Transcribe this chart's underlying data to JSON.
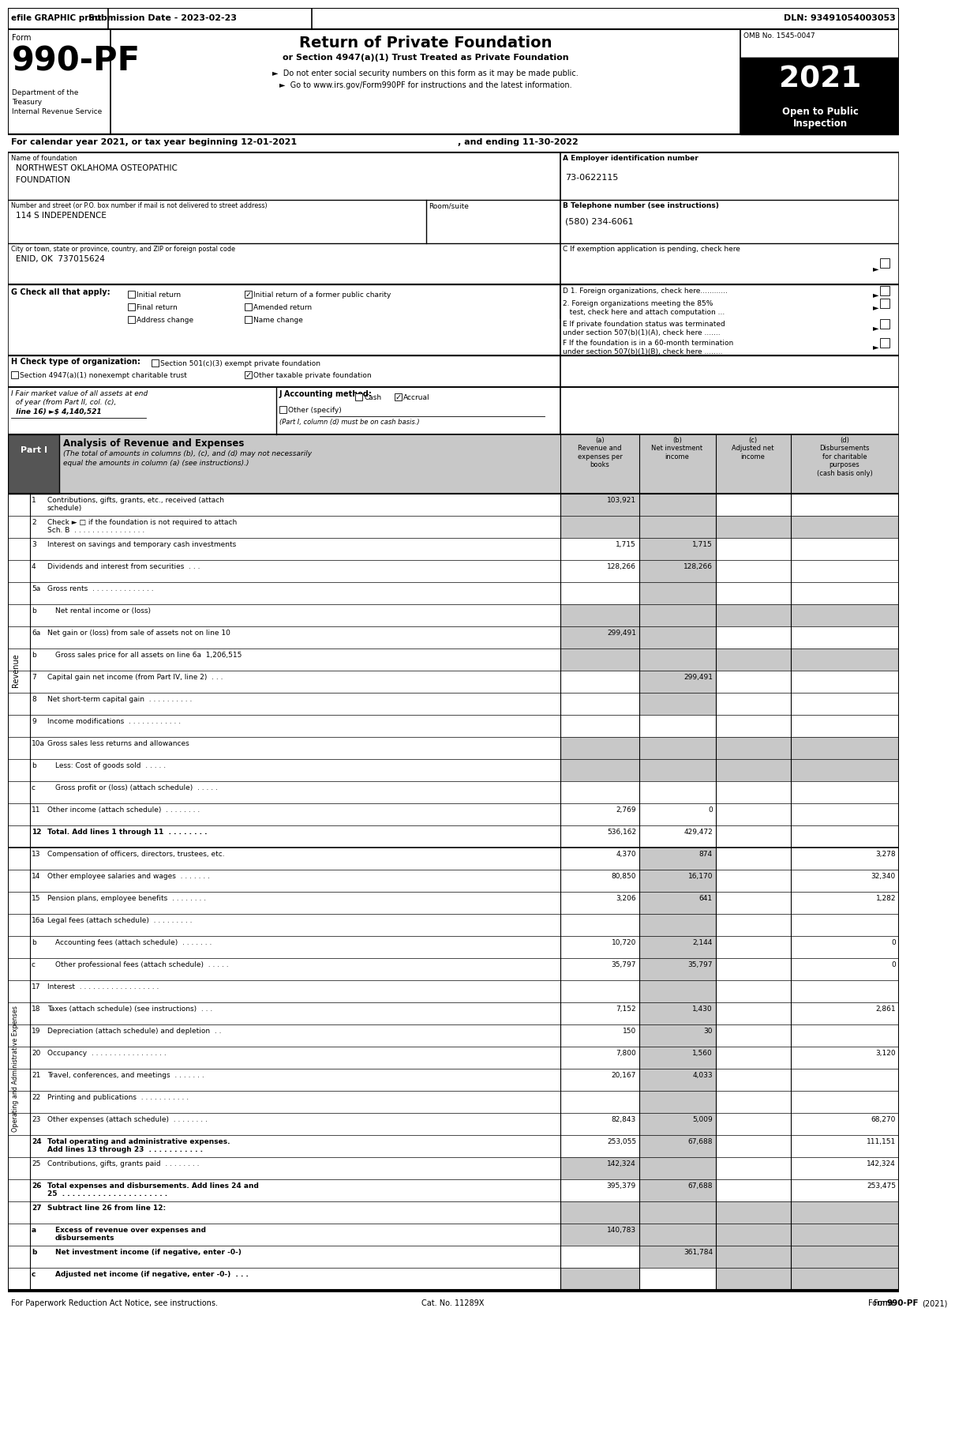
{
  "header_bar": {
    "efile": "efile GRAPHIC print",
    "submission": "Submission Date - 2023-02-23",
    "dln": "DLN: 93491054003053"
  },
  "form_title": "990-PF",
  "return_title": "Return of Private Foundation",
  "return_subtitle": "or Section 4947(a)(1) Trust Treated as Private Foundation",
  "bullet1": "►  Do not enter social security numbers on this form as it may be made public.",
  "bullet2": "►  Go to www.irs.gov/Form990PF for instructions and the latest information.",
  "omb": "OMB No. 1545-0047",
  "year": "2021",
  "dept1": "Department of the",
  "dept2": "Treasury",
  "dept3": "Internal Revenue Service",
  "calendar_line_left": "For calendar year 2021, or tax year beginning 12-01-2021",
  "calendar_line_right": ", and ending 11-30-2022",
  "foundation_name_label": "Name of foundation",
  "foundation_name1": "NORTHWEST OKLAHOMA OSTEOPATHIC",
  "foundation_name2": "FOUNDATION",
  "ein_label": "A Employer identification number",
  "ein": "73-0622115",
  "address_label": "Number and street (or P.O. box number if mail is not delivered to street address)",
  "address": "114 S INDEPENDENCE",
  "room_label": "Room/suite",
  "phone_label": "B Telephone number (see instructions)",
  "phone": "(580) 234-6061",
  "city_label": "City or town, state or province, country, and ZIP or foreign postal code",
  "city": "ENID, OK  737015624",
  "exemption_label": "C If exemption application is pending, check here",
  "g_label": "G Check all that apply:",
  "d1_label": "D 1. Foreign organizations, check here............",
  "d2_line1": "2. Foreign organizations meeting the 85%",
  "d2_line2": "   test, check here and attach computation ...",
  "e_line1": "E If private foundation status was terminated",
  "e_line2": "under section 507(b)(1)(A), check here .......",
  "f_line1": "F If the foundation is in a 60-month termination",
  "f_line2": "under section 507(b)(1)(B), check here ........",
  "h_label": "H Check type of organization:",
  "i_line1": "I Fair market value of all assets at end",
  "i_line2": "  of year (from Part II, col. (c),",
  "i_line3": "  line 16) ►$ 4,140,521",
  "j_label": "J Accounting method:",
  "j_note": "(Part I, column (d) must be on cash basis.)",
  "part1_title": "Part I",
  "part1_name": "Analysis of Revenue and Expenses",
  "part1_desc_italic": "(The total of amounts in columns (b), (c), and (d) may not necessarily equal the amounts in column (a) (see instructions).)",
  "rows": [
    {
      "num": "1",
      "label1": "Contributions, gifts, grants, etc., received (attach",
      "label2": "schedule)",
      "a": "103,921",
      "b": "",
      "c": "",
      "d": "",
      "shade_b": true,
      "shade_c": true,
      "shade_d": false
    },
    {
      "num": "2",
      "label1": "Check ► □ if the foundation is not required to attach",
      "label2": "Sch. B  . . . . . . . . . . . . . . . .",
      "a": "",
      "b": "",
      "c": "",
      "d": "",
      "shade_b": true,
      "shade_c": true,
      "shade_d": true
    },
    {
      "num": "3",
      "label1": "Interest on savings and temporary cash investments",
      "label2": "",
      "a": "1,715",
      "b": "1,715",
      "c": "",
      "d": "",
      "shade_c": true,
      "shade_d": false,
      "shade_b": false
    },
    {
      "num": "4",
      "label1": "Dividends and interest from securities  . . .",
      "label2": "",
      "a": "128,266",
      "b": "128,266",
      "c": "",
      "d": "",
      "shade_c": true,
      "shade_d": false,
      "shade_b": false
    },
    {
      "num": "5a",
      "label1": "Gross rents  . . . . . . . . . . . . . .",
      "label2": "",
      "a": "",
      "b": "",
      "c": "",
      "d": "",
      "shade_b": false,
      "shade_c": true,
      "shade_d": false
    },
    {
      "num": "b",
      "label1": "Net rental income or (loss)",
      "label2": "",
      "a": "",
      "b": "",
      "c": "",
      "d": "",
      "shade_b": true,
      "shade_c": true,
      "shade_d": true
    },
    {
      "num": "6a",
      "label1": "Net gain or (loss) from sale of assets not on line 10",
      "label2": "",
      "a": "299,491",
      "b": "",
      "c": "",
      "d": "",
      "shade_b": true,
      "shade_c": true,
      "shade_d": false
    },
    {
      "num": "b",
      "label1": "Gross sales price for all assets on line 6a  1,206,515",
      "label2": "",
      "a": "",
      "b": "",
      "c": "",
      "d": "",
      "shade_b": true,
      "shade_c": true,
      "shade_d": true
    },
    {
      "num": "7",
      "label1": "Capital gain net income (from Part IV, line 2)  . . .",
      "label2": "",
      "a": "",
      "b": "299,491",
      "c": "",
      "d": "",
      "shade_b": false,
      "shade_c": true,
      "shade_d": false
    },
    {
      "num": "8",
      "label1": "Net short-term capital gain  . . . . . . . . . .",
      "label2": "",
      "a": "",
      "b": "",
      "c": "",
      "d": "",
      "shade_b": false,
      "shade_c": true,
      "shade_d": false
    },
    {
      "num": "9",
      "label1": "Income modifications  . . . . . . . . . . . .",
      "label2": "",
      "a": "",
      "b": "",
      "c": "",
      "d": "",
      "shade_b": false,
      "shade_c": false,
      "shade_d": false
    },
    {
      "num": "10a",
      "label1": "Gross sales less returns and allowances",
      "label2": "",
      "a": "",
      "b": "",
      "c": "",
      "d": "",
      "shade_b": true,
      "shade_c": true,
      "shade_d": true
    },
    {
      "num": "b",
      "label1": "Less: Cost of goods sold  . . . . .",
      "label2": "",
      "a": "",
      "b": "",
      "c": "",
      "d": "",
      "shade_b": true,
      "shade_c": true,
      "shade_d": true
    },
    {
      "num": "c",
      "label1": "Gross profit or (loss) (attach schedule)  . . . . .",
      "label2": "",
      "a": "",
      "b": "",
      "c": "",
      "d": "",
      "shade_b": false,
      "shade_c": false,
      "shade_d": false
    },
    {
      "num": "11",
      "label1": "Other income (attach schedule)  . . . . . . . .",
      "label2": "",
      "a": "2,769",
      "b": "0",
      "c": "",
      "d": "",
      "shade_b": false,
      "shade_c": false,
      "shade_d": false
    },
    {
      "num": "12",
      "label1": "Total. Add lines 1 through 11  . . . . . . . .",
      "label2": "",
      "a": "536,162",
      "b": "429,472",
      "c": "",
      "d": "",
      "shade_b": false,
      "shade_c": false,
      "shade_d": false,
      "bold": true
    },
    {
      "num": "13",
      "label1": "Compensation of officers, directors, trustees, etc.",
      "label2": "",
      "a": "4,370",
      "b": "874",
      "c": "",
      "d": "3,278",
      "shade_b": false,
      "shade_c": true,
      "shade_d": false
    },
    {
      "num": "14",
      "label1": "Other employee salaries and wages  . . . . . . .",
      "label2": "",
      "a": "80,850",
      "b": "16,170",
      "c": "",
      "d": "32,340",
      "shade_b": false,
      "shade_c": true,
      "shade_d": false
    },
    {
      "num": "15",
      "label1": "Pension plans, employee benefits  . . . . . . . .",
      "label2": "",
      "a": "3,206",
      "b": "641",
      "c": "",
      "d": "1,282",
      "shade_b": false,
      "shade_c": true,
      "shade_d": false
    },
    {
      "num": "16a",
      "label1": "Legal fees (attach schedule)  . . . . . . . . .",
      "label2": "",
      "a": "",
      "b": "",
      "c": "",
      "d": "",
      "shade_b": false,
      "shade_c": true,
      "shade_d": false
    },
    {
      "num": "b",
      "label1": "Accounting fees (attach schedule)  . . . . . . .",
      "label2": "",
      "a": "10,720",
      "b": "2,144",
      "c": "",
      "d": "0",
      "shade_b": false,
      "shade_c": true,
      "shade_d": false
    },
    {
      "num": "c",
      "label1": "Other professional fees (attach schedule)  . . . . .",
      "label2": "",
      "a": "35,797",
      "b": "35,797",
      "c": "",
      "d": "0",
      "shade_b": false,
      "shade_c": true,
      "shade_d": false
    },
    {
      "num": "17",
      "label1": "Interest  . . . . . . . . . . . . . . . . . .",
      "label2": "",
      "a": "",
      "b": "",
      "c": "",
      "d": "",
      "shade_b": false,
      "shade_c": true,
      "shade_d": false
    },
    {
      "num": "18",
      "label1": "Taxes (attach schedule) (see instructions)  . . .",
      "label2": "",
      "a": "7,152",
      "b": "1,430",
      "c": "",
      "d": "2,861",
      "shade_b": false,
      "shade_c": true,
      "shade_d": false
    },
    {
      "num": "19",
      "label1": "Depreciation (attach schedule) and depletion  . .",
      "label2": "",
      "a": "150",
      "b": "30",
      "c": "",
      "d": "",
      "shade_b": false,
      "shade_c": true,
      "shade_d": false
    },
    {
      "num": "20",
      "label1": "Occupancy  . . . . . . . . . . . . . . . . .",
      "label2": "",
      "a": "7,800",
      "b": "1,560",
      "c": "",
      "d": "3,120",
      "shade_b": false,
      "shade_c": true,
      "shade_d": false
    },
    {
      "num": "21",
      "label1": "Travel, conferences, and meetings  . . . . . . .",
      "label2": "",
      "a": "20,167",
      "b": "4,033",
      "c": "",
      "d": "",
      "shade_b": false,
      "shade_c": true,
      "shade_d": false
    },
    {
      "num": "22",
      "label1": "Printing and publications  . . . . . . . . . . .",
      "label2": "",
      "a": "",
      "b": "",
      "c": "",
      "d": "",
      "shade_b": false,
      "shade_c": true,
      "shade_d": false
    },
    {
      "num": "23",
      "label1": "Other expenses (attach schedule)  . . . . . . . .",
      "label2": "",
      "a": "82,843",
      "b": "5,009",
      "c": "",
      "d": "68,270",
      "shade_b": false,
      "shade_c": true,
      "shade_d": false
    },
    {
      "num": "24",
      "label1": "Total operating and administrative expenses.",
      "label2": "Add lines 13 through 23  . . . . . . . . . . .",
      "a": "253,055",
      "b": "67,688",
      "c": "",
      "d": "111,151",
      "shade_b": false,
      "shade_c": true,
      "shade_d": false,
      "bold": true
    },
    {
      "num": "25",
      "label1": "Contributions, gifts, grants paid  . . . . . . . .",
      "label2": "",
      "a": "142,324",
      "b": "",
      "c": "",
      "d": "142,324",
      "shade_b": true,
      "shade_c": true,
      "shade_d": false
    },
    {
      "num": "26",
      "label1": "Total expenses and disbursements. Add lines 24 and",
      "label2": "25  . . . . . . . . . . . . . . . . . . . . .",
      "a": "395,379",
      "b": "67,688",
      "c": "",
      "d": "253,475",
      "shade_b": false,
      "shade_c": true,
      "shade_d": false,
      "bold": true
    },
    {
      "num": "27",
      "label1": "Subtract line 26 from line 12:",
      "label2": "",
      "a": "",
      "b": "",
      "c": "",
      "d": "",
      "shade_b": true,
      "shade_c": true,
      "shade_d": true,
      "bold": true
    },
    {
      "num": "a",
      "label1": "Excess of revenue over expenses and",
      "label2": "disbursements",
      "a": "140,783",
      "b": "",
      "c": "",
      "d": "",
      "shade_b": true,
      "shade_c": true,
      "shade_d": true,
      "bold": true
    },
    {
      "num": "b",
      "label1": "Net investment income (if negative, enter -0-)",
      "label2": "",
      "a": "",
      "b": "361,784",
      "c": "",
      "d": "",
      "shade_b": false,
      "shade_c": true,
      "shade_d": true,
      "bold": true
    },
    {
      "num": "c",
      "label1": "Adjusted net income (if negative, enter -0-)  . . .",
      "label2": "",
      "a": "",
      "b": "",
      "c": "",
      "d": "",
      "shade_b": true,
      "shade_c": false,
      "shade_d": true,
      "bold": true
    }
  ],
  "revenue_label": "Revenue",
  "expense_label": "Operating and Administrative Expenses",
  "footer": "For Paperwork Reduction Act Notice, see instructions.",
  "cat_no": "Cat. No. 11289X",
  "form_footer": "Form 990-PF (2021)"
}
